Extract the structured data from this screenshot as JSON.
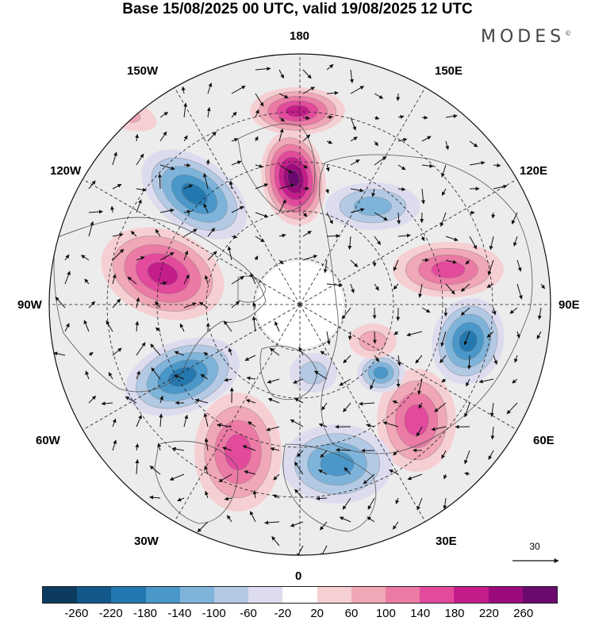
{
  "title": "Base 15/08/2025 00 UTC, valid 19/08/2025 12 UTC",
  "brand": "MODES",
  "brand_mark": "©",
  "longitude_labels": {
    "lon_180": "180",
    "lon_150w": "150W",
    "lon_150e": "150E",
    "lon_120w": "120W",
    "lon_120e": "120E",
    "lon_90w": "90W",
    "lon_90e": "90E",
    "lon_60w": "60W",
    "lon_60e": "60E",
    "lon_30w": "30W",
    "lon_30e": "30E",
    "lon_0": "0"
  },
  "wind_reference": {
    "value": "30"
  },
  "colorbar": {
    "colors": [
      "#0d3b5e",
      "#12588a",
      "#2478b0",
      "#4a97c9",
      "#7fb4da",
      "#b3c9e4",
      "#dcdcee",
      "#ffffff",
      "#f6cfd3",
      "#f0a7b6",
      "#eb7aa4",
      "#e34a9c",
      "#c41d8a",
      "#9c0b7c",
      "#6b0a6e"
    ],
    "ticks": [
      "-260",
      "-220",
      "-180",
      "-140",
      "-100",
      "-60",
      "-20",
      "20",
      "60",
      "100",
      "140",
      "180",
      "220",
      "260"
    ]
  },
  "anomaly_centers": [
    {
      "sign": "neg",
      "level": 4
    },
    {
      "sign": "pos",
      "level": 6
    },
    {
      "sign": "neg",
      "level": 2
    },
    {
      "sign": "pos",
      "level": 4
    },
    {
      "sign": "pos",
      "level": 3
    },
    {
      "sign": "neg",
      "level": 4
    },
    {
      "sign": "neg",
      "level": 4
    },
    {
      "sign": "pos",
      "level": 3
    },
    {
      "sign": "pos",
      "level": 3
    },
    {
      "sign": "neg",
      "level": 3
    },
    {
      "sign": "pos",
      "level": 4
    },
    {
      "sign": "neg",
      "level": 3
    },
    {
      "sign": "pos",
      "level": 1
    },
    {
      "sign": "neg",
      "level": 1
    },
    {
      "sign": "pos",
      "level": 1
    }
  ]
}
